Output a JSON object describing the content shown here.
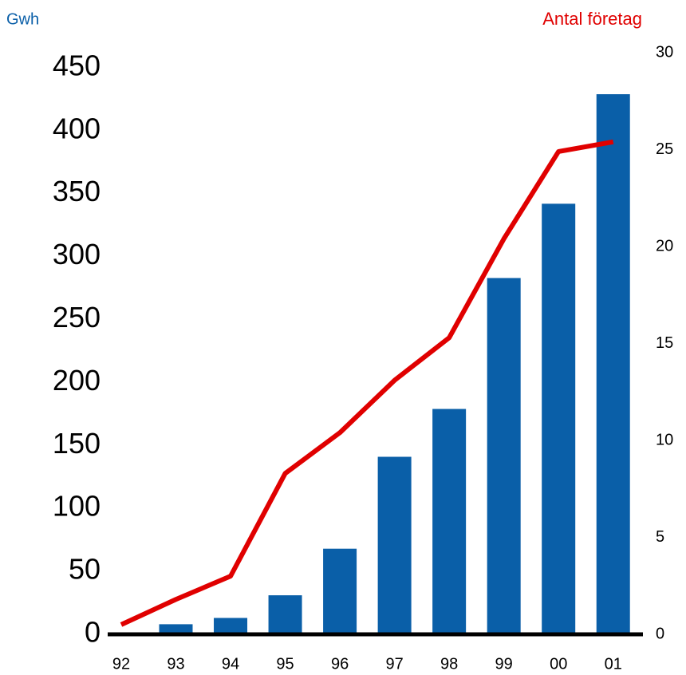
{
  "chart_data": {
    "type": "bar_line",
    "ylabel": "Gwh",
    "y2label": "Antal företag",
    "categories": [
      "92",
      "93",
      "94",
      "95",
      "96",
      "97",
      "98",
      "99",
      "00",
      "01"
    ],
    "series": [
      {
        "name": "Gwh",
        "type": "bar",
        "color": "#0a5fa8",
        "values": [
          null,
          8,
          13,
          31,
          68,
          141,
          179,
          283,
          342,
          429
        ]
      },
      {
        "name": "Antal företag",
        "type": "line",
        "axis": "y2",
        "color": "#e00000",
        "values": [
          0.5,
          1.8,
          3.0,
          8.3,
          10.4,
          13.1,
          15.3,
          20.4,
          24.9,
          25.4
        ]
      }
    ],
    "ylim": [
      0,
      462
    ],
    "yticks": [
      0,
      50,
      100,
      150,
      200,
      250,
      300,
      350,
      400,
      450
    ],
    "y2lim": [
      0,
      30
    ],
    "y2ticks": [
      0,
      5,
      10,
      15,
      20,
      25,
      30
    ],
    "grid": false
  }
}
